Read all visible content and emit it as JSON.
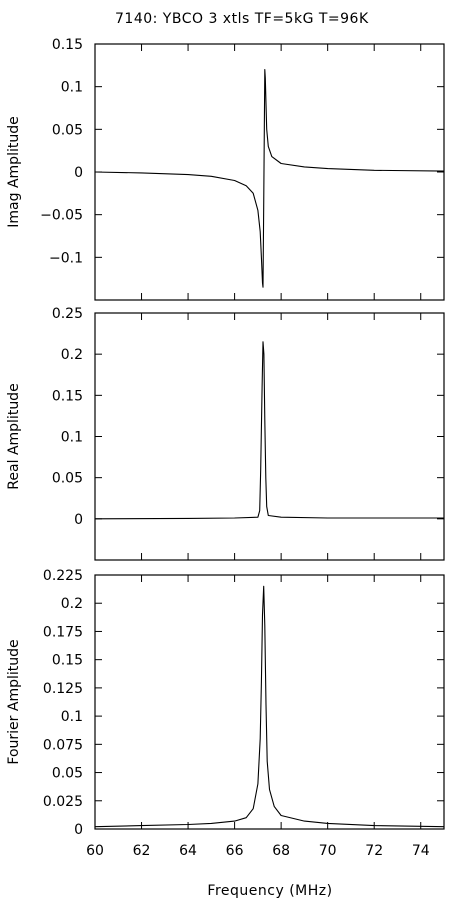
{
  "chart_data": {
    "title": "7140:  YBCO 3 xtls TF=5kG T=96K",
    "xlabel": "Frequency (MHz)",
    "xlim": [
      60,
      75
    ],
    "xticks": [
      60,
      62,
      64,
      66,
      68,
      70,
      72,
      74
    ],
    "xtick_labels": [
      "60",
      "62",
      "64",
      "66",
      "68",
      "70",
      "72",
      "74"
    ],
    "panels": [
      {
        "type": "line",
        "ylabel": "Imag Amplitude",
        "ylim": [
          -0.15,
          0.15
        ],
        "yticks": [
          -0.1,
          -0.05,
          0,
          0.05,
          0.1,
          0.15
        ],
        "ytick_labels": [
          "−0.1",
          "−0.05",
          "0",
          "0.05",
          "0.1",
          "0.15"
        ],
        "series": [
          {
            "x": [
              60,
              62,
              64,
              65,
              66,
              66.5,
              66.8,
              67.0,
              67.1,
              67.15,
              67.2,
              67.22,
              67.25,
              67.3,
              67.32,
              67.38,
              67.45,
              67.6,
              68,
              69,
              70,
              72,
              75
            ],
            "y": [
              0,
              -0.001,
              -0.003,
              -0.005,
              -0.01,
              -0.016,
              -0.025,
              -0.045,
              -0.07,
              -0.1,
              -0.13,
              -0.135,
              -0.04,
              0.12,
              0.11,
              0.05,
              0.03,
              0.018,
              0.01,
              0.006,
              0.004,
              0.002,
              0.001
            ]
          }
        ]
      },
      {
        "type": "line",
        "ylabel": "Real Amplitude",
        "ylim": [
          -0.05,
          0.25
        ],
        "yticks": [
          0,
          0.05,
          0.1,
          0.15,
          0.2,
          0.25
        ],
        "ytick_labels": [
          "0",
          "0.05",
          "0.1",
          "0.15",
          "0.2",
          "0.25"
        ],
        "series": [
          {
            "x": [
              60,
              64,
              66,
              67.0,
              67.08,
              67.12,
              67.18,
              67.22,
              67.26,
              67.3,
              67.34,
              67.38,
              67.45,
              68,
              70,
              75
            ],
            "y": [
              0,
              0.0005,
              0.001,
              0.002,
              0.01,
              0.06,
              0.16,
              0.215,
              0.2,
              0.12,
              0.05,
              0.015,
              0.004,
              0.002,
              0.001,
              0.001
            ]
          }
        ]
      },
      {
        "type": "line",
        "ylabel": "Fourier Amplitude",
        "ylim": [
          0,
          0.225
        ],
        "yticks": [
          0,
          0.025,
          0.05,
          0.075,
          0.1,
          0.125,
          0.15,
          0.175,
          0.2,
          0.225
        ],
        "ytick_labels": [
          "0",
          "0.025",
          "0.05",
          "0.075",
          "0.1",
          "0.125",
          "0.15",
          "0.175",
          "0.2",
          "0.225"
        ],
        "series": [
          {
            "x": [
              60,
              62,
              64,
              65,
              66,
              66.5,
              66.8,
              67.0,
              67.1,
              67.15,
              67.2,
              67.25,
              67.3,
              67.35,
              67.4,
              67.5,
              67.7,
              68,
              69,
              70,
              72,
              75
            ],
            "y": [
              0.002,
              0.003,
              0.004,
              0.005,
              0.007,
              0.01,
              0.018,
              0.04,
              0.08,
              0.13,
              0.19,
              0.215,
              0.18,
              0.11,
              0.06,
              0.035,
              0.02,
              0.012,
              0.007,
              0.005,
              0.003,
              0.002
            ]
          }
        ]
      }
    ]
  }
}
